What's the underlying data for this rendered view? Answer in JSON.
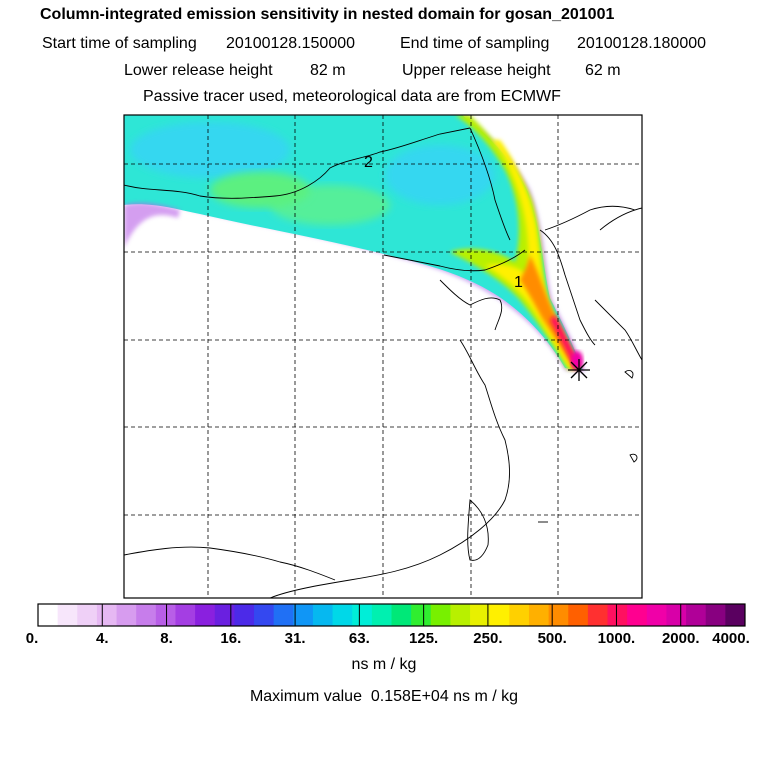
{
  "header": {
    "title": "Column-integrated emission sensitivity in nested domain for gosan_201001",
    "start_label": "Start time of sampling",
    "start_value": "20100128.150000",
    "end_label": "End time of sampling",
    "end_value": "20100128.180000",
    "lower_label": "Lower release height",
    "lower_value": "82 m",
    "upper_label": "Upper release height",
    "upper_value": "62 m",
    "tracer_note": "Passive tracer used, meteorological data are from ECMWF"
  },
  "map": {
    "contour_labels": [
      "2",
      "1"
    ],
    "receptor_marker": "star-marker"
  },
  "colorbar": {
    "tick_labels": [
      "0.",
      "4.",
      "8.",
      "16.",
      "31.",
      "63.",
      "125.",
      "250.",
      "500.",
      "1000.",
      "2000.",
      "4000."
    ],
    "colors": [
      "#ffffff",
      "#f7e6fb",
      "#efd0f7",
      "#e6b8f3",
      "#d79cef",
      "#c77deb",
      "#b85ee7",
      "#a43ee3",
      "#8a20df",
      "#6a20e0",
      "#4c2ae8",
      "#3448f0",
      "#2070f5",
      "#1096f6",
      "#06b8f0",
      "#00d8e8",
      "#00eed8",
      "#00f0b0",
      "#00e878",
      "#30ee30",
      "#78f000",
      "#b8f000",
      "#e8f000",
      "#fff000",
      "#ffd000",
      "#ffb000",
      "#ff8c00",
      "#ff6000",
      "#ff3030",
      "#ff1060",
      "#ff0090",
      "#f000a8",
      "#d800a8",
      "#b00098",
      "#880080",
      "#5a0060"
    ],
    "units": "ns m / kg"
  },
  "footer": {
    "max_label": "Maximum value",
    "max_value": "0.158E+04 ns m / kg"
  }
}
